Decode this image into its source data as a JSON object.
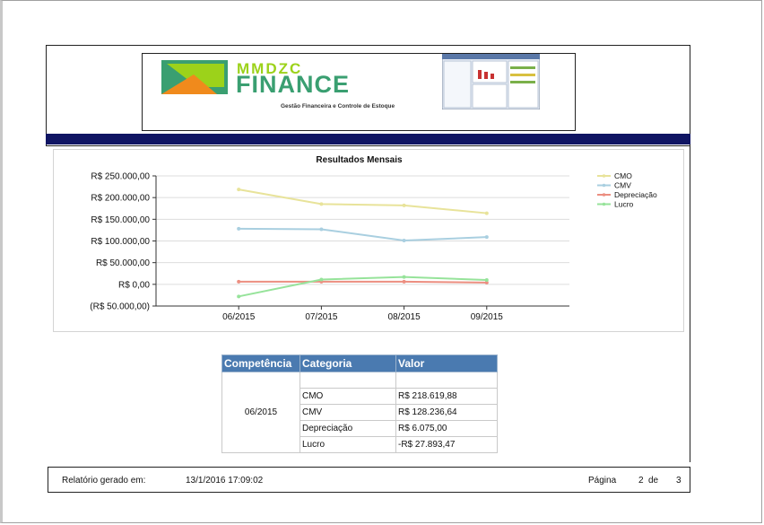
{
  "brand": {
    "top_text": "MMDZC",
    "main_text": "FINANCE",
    "tagline": "Gestão Financeira e Controle de Estoque"
  },
  "chart_data": {
    "type": "line",
    "title": "Resultados Mensais",
    "categories": [
      "06/2015",
      "07/2015",
      "08/2015",
      "09/2015"
    ],
    "y_tick_labels": [
      "R$ 250.000,00",
      "R$ 200.000,00",
      "R$ 150.000,00",
      "R$ 100.000,00",
      "R$ 50.000,00",
      "R$ 0,00",
      "(R$ 50.000,00)"
    ],
    "ylim": [
      -50000,
      250000
    ],
    "grid": true,
    "legend_position": "top-right",
    "series": [
      {
        "name": "CMO",
        "color": "#e8e39a",
        "values": [
          218619.88,
          185000,
          182000,
          164000
        ]
      },
      {
        "name": "CMV",
        "color": "#a9cfe0",
        "values": [
          128236.64,
          127000,
          101000,
          109000
        ]
      },
      {
        "name": "Depreciação",
        "color": "#ec8e80",
        "values": [
          6075.0,
          6000,
          6000,
          4000
        ]
      },
      {
        "name": "Lucro",
        "color": "#96e39a",
        "values": [
          -27893.47,
          11000,
          17000,
          10000
        ]
      }
    ]
  },
  "table": {
    "headers": [
      "Competência",
      "Categoria",
      "Valor"
    ],
    "competencia": "06/2015",
    "rows": [
      {
        "categoria": "CMO",
        "valor": "R$ 218.619,88"
      },
      {
        "categoria": "CMV",
        "valor": "R$ 128.236,64"
      },
      {
        "categoria": "Depreciação",
        "valor": "R$ 6.075,00"
      },
      {
        "categoria": "Lucro",
        "valor": "-R$ 27.893,47"
      }
    ]
  },
  "footer": {
    "generated_label": "Relatório gerado em:",
    "generated_at": "13/1/2016 17:09:02",
    "page_label": "Página",
    "page_current": "2",
    "page_of": "de",
    "page_total": "3"
  }
}
